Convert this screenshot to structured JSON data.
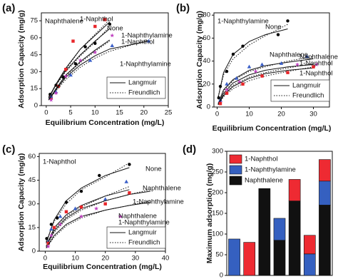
{
  "chart_data": [
    {
      "type": "scatter",
      "panel_label": "(a)",
      "title": "Naphthalene",
      "xlabel": "Equilibrium Concentration (mg/L)",
      "ylabel": "Adsorption Capacity (mg/g)",
      "xlim": [
        -1,
        25
      ],
      "ylim": [
        0,
        82
      ],
      "xticks": [
        0,
        5,
        10,
        15,
        20,
        25
      ],
      "yticks": [
        0,
        15,
        30,
        45,
        60,
        75
      ],
      "legend": [
        "Langmuir",
        "Freundlich"
      ],
      "fit_x": [
        0.5,
        2,
        4,
        7,
        10,
        13,
        21
      ],
      "series": [
        {
          "name": "None",
          "color": "#000000",
          "marker": "circle",
          "x": [
            0.8,
            2,
            3.5,
            6,
            8,
            10,
            13
          ],
          "values": [
            10,
            18,
            25,
            37,
            52,
            55,
            72
          ],
          "langmuir": [
            7,
            19,
            31,
            45,
            57,
            68,
            null
          ],
          "freundlich": [
            8,
            18,
            30,
            44,
            56,
            70,
            null
          ]
        },
        {
          "name": "1-Naphthol",
          "color": "#e8262a",
          "marker": "square",
          "x": [
            1,
            2.5,
            4,
            5.5,
            10,
            12
          ],
          "values": [
            7,
            17,
            32,
            57,
            70,
            76
          ],
          "langmuir": [
            6,
            19,
            33,
            50,
            62,
            74,
            null
          ],
          "freundlich": [
            7,
            18,
            32,
            50,
            63,
            76,
            null
          ]
        },
        {
          "name": "1-Naphthylamine",
          "color": "#3a5fc8",
          "marker": "triangle",
          "x": [
            1,
            2,
            5,
            9,
            13.5,
            21
          ],
          "values": [
            8,
            12,
            27,
            40,
            53,
            57
          ],
          "langmuir": [
            5,
            14,
            25,
            36,
            44,
            50,
            57
          ],
          "freundlich": [
            5,
            13,
            23,
            34,
            42,
            48,
            58
          ]
        },
        {
          "name": [
            "1-Naphthylamine",
            "1-Naphthol"
          ],
          "color": "#c040c0",
          "marker": "star",
          "x": [
            1,
            2,
            4,
            7,
            10,
            13.5
          ],
          "values": [
            5,
            11,
            26,
            40,
            47,
            62
          ],
          "langmuir": [
            5,
            15,
            27,
            39,
            49,
            58,
            null
          ],
          "freundlich": [
            5,
            14,
            26,
            38,
            48,
            57,
            null
          ]
        }
      ]
    },
    {
      "type": "scatter",
      "panel_label": "(b)",
      "title": "1-Naphthylamine",
      "xlabel": "Equilibrium Concentration (mg/L)",
      "ylabel": "Adsorption Capacity (mg/g)",
      "xlim": [
        -1,
        35
      ],
      "ylim": [
        0,
        82
      ],
      "xticks": [
        0,
        10,
        20,
        30
      ],
      "yticks": [
        0,
        20,
        40,
        60,
        80
      ],
      "legend": [
        "Langmuir",
        "Freundlich"
      ],
      "fit_x": [
        0.3,
        2,
        5,
        10,
        15,
        22,
        30
      ],
      "series": [
        {
          "name": "None",
          "color": "#000000",
          "marker": "circle",
          "x": [
            0.5,
            1,
            3,
            5,
            8,
            19,
            22
          ],
          "values": [
            8,
            18,
            31,
            46,
            53,
            63,
            75
          ],
          "langmuir": [
            8,
            30,
            46,
            57,
            63,
            68,
            null
          ],
          "freundlich": [
            9,
            28,
            42,
            54,
            62,
            72,
            null
          ]
        },
        {
          "name": "Naphthalene",
          "color": "#3a5fc8",
          "marker": "triangle",
          "x": [
            1,
            3,
            6,
            10,
            14,
            20,
            28
          ],
          "values": [
            6,
            20,
            25,
            35,
            37,
            38,
            44
          ],
          "langmuir": [
            3,
            15,
            24,
            32,
            36,
            39,
            42
          ],
          "freundlich": [
            3,
            14,
            23,
            31,
            35,
            40,
            44
          ]
        },
        {
          "name": [
            "Naphthalene",
            "1-Naphthol"
          ],
          "color": "#c040c0",
          "marker": "star",
          "x": [
            1,
            3,
            7,
            12,
            25,
            31
          ],
          "values": [
            4,
            15,
            22,
            31,
            37,
            37
          ],
          "langmuir": [
            2,
            12,
            21,
            28,
            32,
            35,
            37
          ],
          "freundlich": [
            2,
            11,
            19,
            26,
            30,
            34,
            38
          ]
        },
        {
          "name": "1-Naphthol",
          "color": "#e8262a",
          "marker": "square",
          "x": [
            1,
            3,
            8,
            14,
            22,
            30
          ],
          "values": [
            3,
            12,
            20,
            27,
            30,
            35
          ],
          "langmuir": [
            2,
            10,
            18,
            25,
            29,
            32,
            34
          ],
          "freundlich": [
            2,
            9,
            16,
            23,
            27,
            31,
            35
          ]
        }
      ]
    },
    {
      "type": "scatter",
      "panel_label": "(c)",
      "title": "1-Naphthol",
      "xlabel": "Equilibrium Concentration (mg/L)",
      "ylabel": "Adsorption Capacity (mg/g)",
      "xlim": [
        -2,
        40
      ],
      "ylim": [
        0,
        62
      ],
      "xticks": [
        0,
        10,
        20,
        30,
        40
      ],
      "yticks": [
        0,
        15,
        30,
        45,
        60
      ],
      "legend": [
        "Langmuir",
        "Freundlich"
      ],
      "fit_x": [
        0.3,
        3,
        7,
        12,
        20,
        28,
        35
      ],
      "series": [
        {
          "name": "None",
          "color": "#000000",
          "marker": "circle",
          "x": [
            0.5,
            2,
            4,
            7,
            12,
            18,
            28
          ],
          "values": [
            8,
            17,
            21,
            31,
            38,
            48,
            55
          ],
          "langmuir": [
            5,
            20,
            32,
            40,
            48,
            53,
            null
          ],
          "freundlich": [
            6,
            19,
            30,
            39,
            47,
            56,
            null
          ]
        },
        {
          "name": "Naphthalene",
          "color": "#3a5fc8",
          "marker": "triangle",
          "x": [
            1,
            2,
            5,
            10,
            20,
            27
          ],
          "values": [
            6,
            14,
            22,
            27,
            33,
            44
          ],
          "langmuir": [
            3,
            15,
            23,
            29,
            35,
            39,
            null
          ],
          "freundlich": [
            3,
            14,
            22,
            28,
            35,
            41,
            null
          ]
        },
        {
          "name": "1-Naphthylamine",
          "color": "#e8262a",
          "marker": "square",
          "x": [
            1,
            3,
            7,
            12,
            20,
            28
          ],
          "values": [
            5,
            15,
            25,
            28,
            30,
            37
          ],
          "langmuir": [
            3,
            13,
            21,
            27,
            32,
            36,
            38
          ],
          "freundlich": [
            3,
            12,
            20,
            26,
            32,
            36,
            39
          ]
        },
        {
          "name": [
            "Naphthalene",
            "1-Naphthylamine"
          ],
          "color": "#c040c0",
          "marker": "star",
          "x": [
            1,
            2,
            5,
            12,
            17,
            25
          ],
          "values": [
            3,
            10,
            17,
            22,
            27,
            22
          ],
          "langmuir": [
            2,
            10,
            17,
            22,
            26,
            29,
            31
          ],
          "freundlich": [
            2,
            9,
            16,
            21,
            26,
            29,
            32
          ]
        }
      ]
    },
    {
      "type": "bar",
      "panel_label": "(d)",
      "ylabel": "Maximum adsorption (mg/g)",
      "stacked": true,
      "ylim": [
        0,
        300
      ],
      "yticks": [
        0,
        50,
        100,
        150,
        200,
        250,
        300
      ],
      "categories": [
        null,
        null,
        null,
        null,
        null,
        null,
        null
      ],
      "series": [
        {
          "name": "Naphthalene",
          "color": "#111111",
          "values": [
            null,
            null,
            210,
            85,
            180,
            null,
            170
          ]
        },
        {
          "name": "1-Naphthylamine",
          "color": "#3560c0",
          "values": [
            88,
            null,
            null,
            53,
            null,
            52,
            58
          ]
        },
        {
          "name": "1-Naphthol",
          "color": "#ee2a32",
          "values": [
            null,
            80,
            null,
            null,
            52,
            45,
            52
          ]
        }
      ]
    }
  ]
}
